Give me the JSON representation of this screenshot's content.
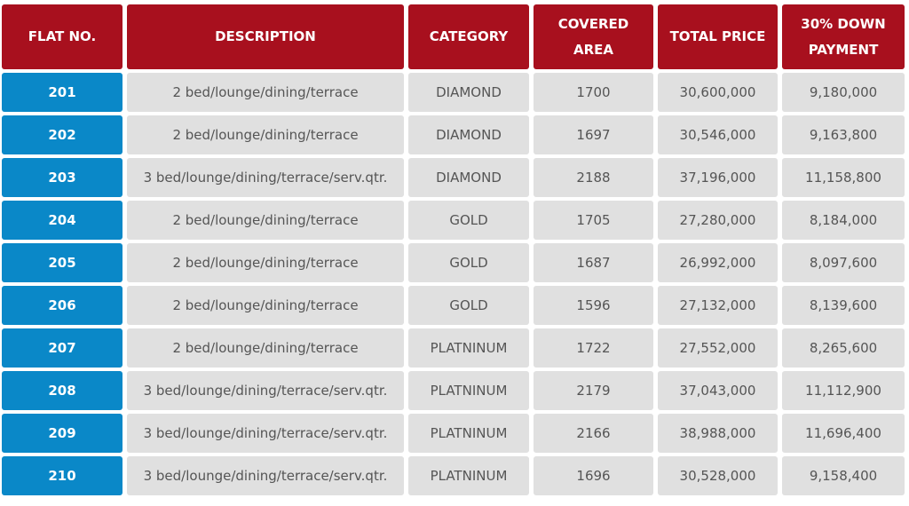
{
  "table": {
    "headers": [
      "FLAT NO.",
      "DESCRIPTION",
      "CATEGORY",
      "COVERED AREA",
      "TOTAL PRICE",
      "30% DOWN PAYMENT"
    ],
    "rows": [
      [
        "201",
        "2 bed/lounge/dining/terrace",
        "DIAMOND",
        "1700",
        "30,600,000",
        "9,180,000"
      ],
      [
        "202",
        "2 bed/lounge/dining/terrace",
        "DIAMOND",
        "1697",
        "30,546,000",
        "9,163,800"
      ],
      [
        "203",
        "3 bed/lounge/dining/terrace/serv.qtr.",
        "DIAMOND",
        "2188",
        "37,196,000",
        "11,158,800"
      ],
      [
        "204",
        "2 bed/lounge/dining/terrace",
        "GOLD",
        "1705",
        "27,280,000",
        "8,184,000"
      ],
      [
        "205",
        "2 bed/lounge/dining/terrace",
        "GOLD",
        "1687",
        "26,992,000",
        "8,097,600"
      ],
      [
        "206",
        "2 bed/lounge/dining/terrace",
        "GOLD",
        "1596",
        "27,132,000",
        "8,139,600"
      ],
      [
        "207",
        "2 bed/lounge/dining/terrace",
        "PLATNINUM",
        "1722",
        "27,552,000",
        "8,265,600"
      ],
      [
        "208",
        "3 bed/lounge/dining/terrace/serv.qtr.",
        "PLATNINUM",
        "2179",
        "37,043,000",
        "11,112,900"
      ],
      [
        "209",
        "3 bed/lounge/dining/terrace/serv.qtr.",
        "PLATNINUM",
        "2166",
        "38,988,000",
        "11,696,400"
      ],
      [
        "210",
        "3 bed/lounge/dining/terrace/serv.qtr.",
        "PLATNINUM",
        "1696",
        "30,528,000",
        "9,158,400"
      ]
    ]
  }
}
